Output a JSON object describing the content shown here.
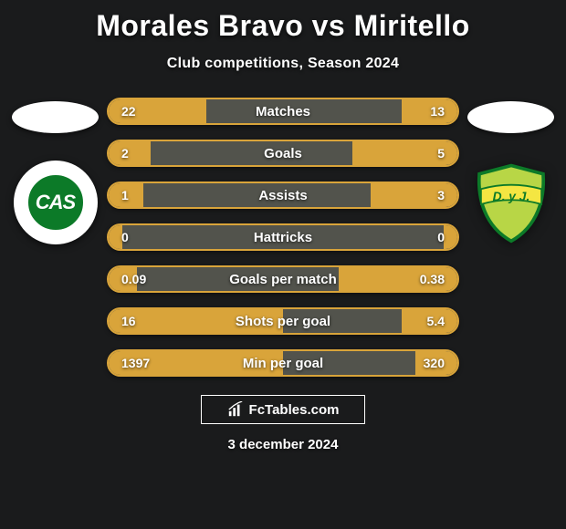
{
  "header": {
    "title": "Morales Bravo vs Miritello",
    "subtitle": "Club competitions, Season 2024"
  },
  "players": {
    "left": {
      "badge_text": "CAS",
      "badge_bg": "#0c7a28",
      "badge_outer": "#ffffff"
    },
    "right": {
      "badge_text": "D. y J.",
      "shield_fill": "#b8d646",
      "shield_stroke": "#0c7a28",
      "band_fill": "#f4e642"
    }
  },
  "chart": {
    "bar_border": "#d9a43a",
    "bar_bg": "#52534c",
    "fill_color": "#d9a43a",
    "text_color": "#ffffff",
    "title_fontsize": 32,
    "subtitle_fontsize": 16,
    "label_fontsize": 15,
    "value_fontsize": 14,
    "background": "#1a1b1c",
    "rows": [
      {
        "label": "Matches",
        "left": "22",
        "right": "13",
        "left_pct": 28,
        "right_pct": 16
      },
      {
        "label": "Goals",
        "left": "2",
        "right": "5",
        "left_pct": 12,
        "right_pct": 30
      },
      {
        "label": "Assists",
        "left": "1",
        "right": "3",
        "left_pct": 10,
        "right_pct": 25
      },
      {
        "label": "Hattricks",
        "left": "0",
        "right": "0",
        "left_pct": 4,
        "right_pct": 4
      },
      {
        "label": "Goals per match",
        "left": "0.09",
        "right": "0.38",
        "left_pct": 8,
        "right_pct": 34
      },
      {
        "label": "Shots per goal",
        "left": "16",
        "right": "5.4",
        "left_pct": 50,
        "right_pct": 16
      },
      {
        "label": "Min per goal",
        "left": "1397",
        "right": "320",
        "left_pct": 50,
        "right_pct": 12
      }
    ]
  },
  "footer": {
    "brand": "FcTables.com",
    "date": "3 december 2024"
  }
}
